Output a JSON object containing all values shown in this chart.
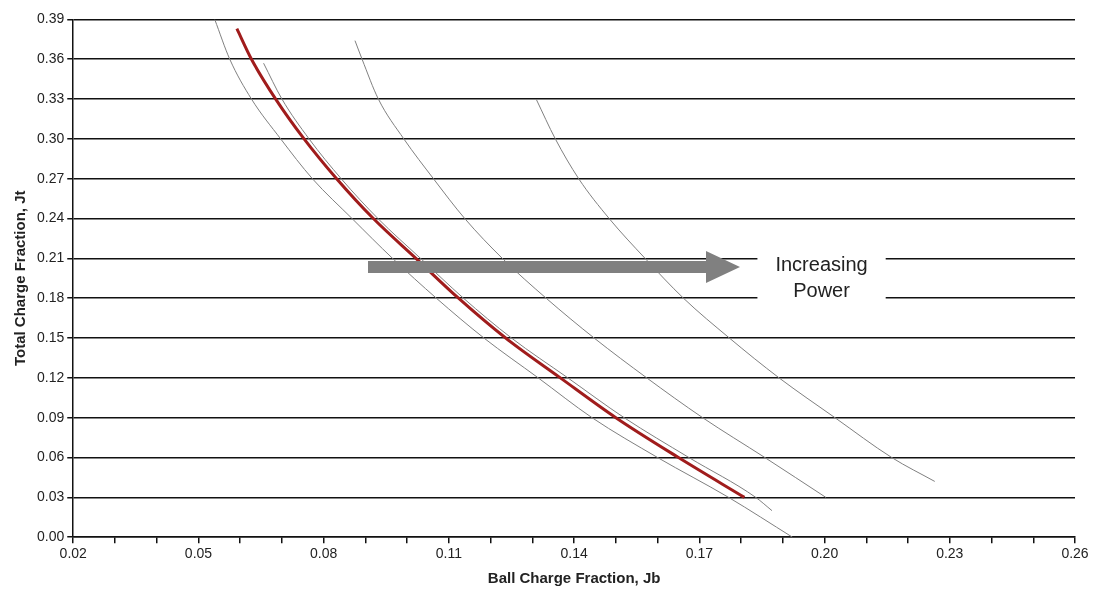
{
  "chart_data": {
    "type": "line",
    "xlabel": "Ball Charge Fraction, Jb",
    "ylabel": "Total Charge Fraction, Jt",
    "xlim": [
      0.02,
      0.26
    ],
    "xticks": [
      0.02,
      {
        "value": 0.03,
        "label": null
      },
      {
        "value": 0.04,
        "label": null
      },
      0.05,
      {
        "value": 0.06,
        "label": null
      },
      {
        "value": 0.07,
        "label": null
      },
      0.08,
      {
        "value": 0.09,
        "label": null
      },
      {
        "value": 0.1,
        "label": null
      },
      0.11,
      {
        "value": 0.12,
        "label": null
      },
      {
        "value": 0.13,
        "label": null
      },
      0.14,
      {
        "value": 0.15,
        "label": null
      },
      {
        "value": 0.16,
        "label": null
      },
      0.17,
      {
        "value": 0.18,
        "label": null
      },
      {
        "value": 0.19,
        "label": null
      },
      {
        "value": 0.2,
        "label": "0.20"
      },
      {
        "value": 0.21,
        "label": null
      },
      {
        "value": 0.22,
        "label": null
      },
      0.23,
      {
        "value": 0.24,
        "label": null
      },
      {
        "value": 0.25,
        "label": null
      },
      0.26
    ],
    "ylim": [
      0,
      0.39
    ],
    "yticks": [
      {
        "value": 0,
        "label": "0.00"
      },
      0.03,
      0.06,
      0.09,
      0.12,
      0.15,
      0.18,
      0.21,
      0.24,
      0.27,
      {
        "value": 0.3,
        "label": "0.30"
      },
      0.33,
      0.36,
      0.39
    ],
    "grid": "y",
    "legend": false,
    "marker": "none",
    "line_style": "solid",
    "annotations": [
      "Increasing Power"
    ],
    "series": [
      {
        "color": "#808080",
        "x": [
          0.0539,
          0.0575,
          0.0627,
          0.0697,
          0.0773,
          0.0868,
          0.0965,
          0.107,
          0.1184,
          0.1314,
          0.1443,
          0.16,
          0.177,
          0.1923
        ],
        "values": [
          0.39,
          0.36,
          0.33,
          0.3,
          0.27,
          0.24,
          0.21,
          0.18,
          0.15,
          0.12,
          0.09,
          0.06,
          0.03,
          0
        ]
      },
      {
        "color": "#a01c1c",
        "x": [
          0.0592,
          0.0627,
          0.0685,
          0.0753,
          0.0831,
          0.0919,
          0.1021,
          0.1123,
          0.1236,
          0.1367,
          0.15,
          0.165,
          0.1808
        ],
        "values": [
          0.383,
          0.36,
          0.33,
          0.3,
          0.27,
          0.24,
          0.21,
          0.18,
          0.15,
          0.12,
          0.09,
          0.06,
          0.03
        ]
      },
      {
        "color": "#808080",
        "x": [
          0.0656,
          0.07,
          0.0765,
          0.0842,
          0.093,
          0.1032,
          0.1135,
          0.125,
          0.1385,
          0.152,
          0.1675,
          0.1835,
          0.1874
        ],
        "values": [
          0.357,
          0.33,
          0.3,
          0.27,
          0.24,
          0.21,
          0.18,
          0.15,
          0.12,
          0.09,
          0.06,
          0.03,
          0.02
        ]
      },
      {
        "color": "#808080",
        "x": [
          0.0875,
          0.0892,
          0.0931,
          0.0992,
          0.1063,
          0.1138,
          0.1228,
          0.1333,
          0.1448,
          0.1574,
          0.1708,
          0.1857,
          0.2003
        ],
        "values": [
          0.374,
          0.36,
          0.33,
          0.3,
          0.27,
          0.24,
          0.21,
          0.18,
          0.15,
          0.12,
          0.09,
          0.06,
          0.03
        ]
      },
      {
        "color": "#808080",
        "x": [
          0.1309,
          0.1355,
          0.1411,
          0.1484,
          0.157,
          0.1662,
          0.1772,
          0.1891,
          0.2025,
          0.2161,
          0.2264
        ],
        "values": [
          0.33,
          0.3,
          0.27,
          0.24,
          0.21,
          0.18,
          0.15,
          0.12,
          0.09,
          0.06,
          0.042
        ]
      }
    ]
  }
}
